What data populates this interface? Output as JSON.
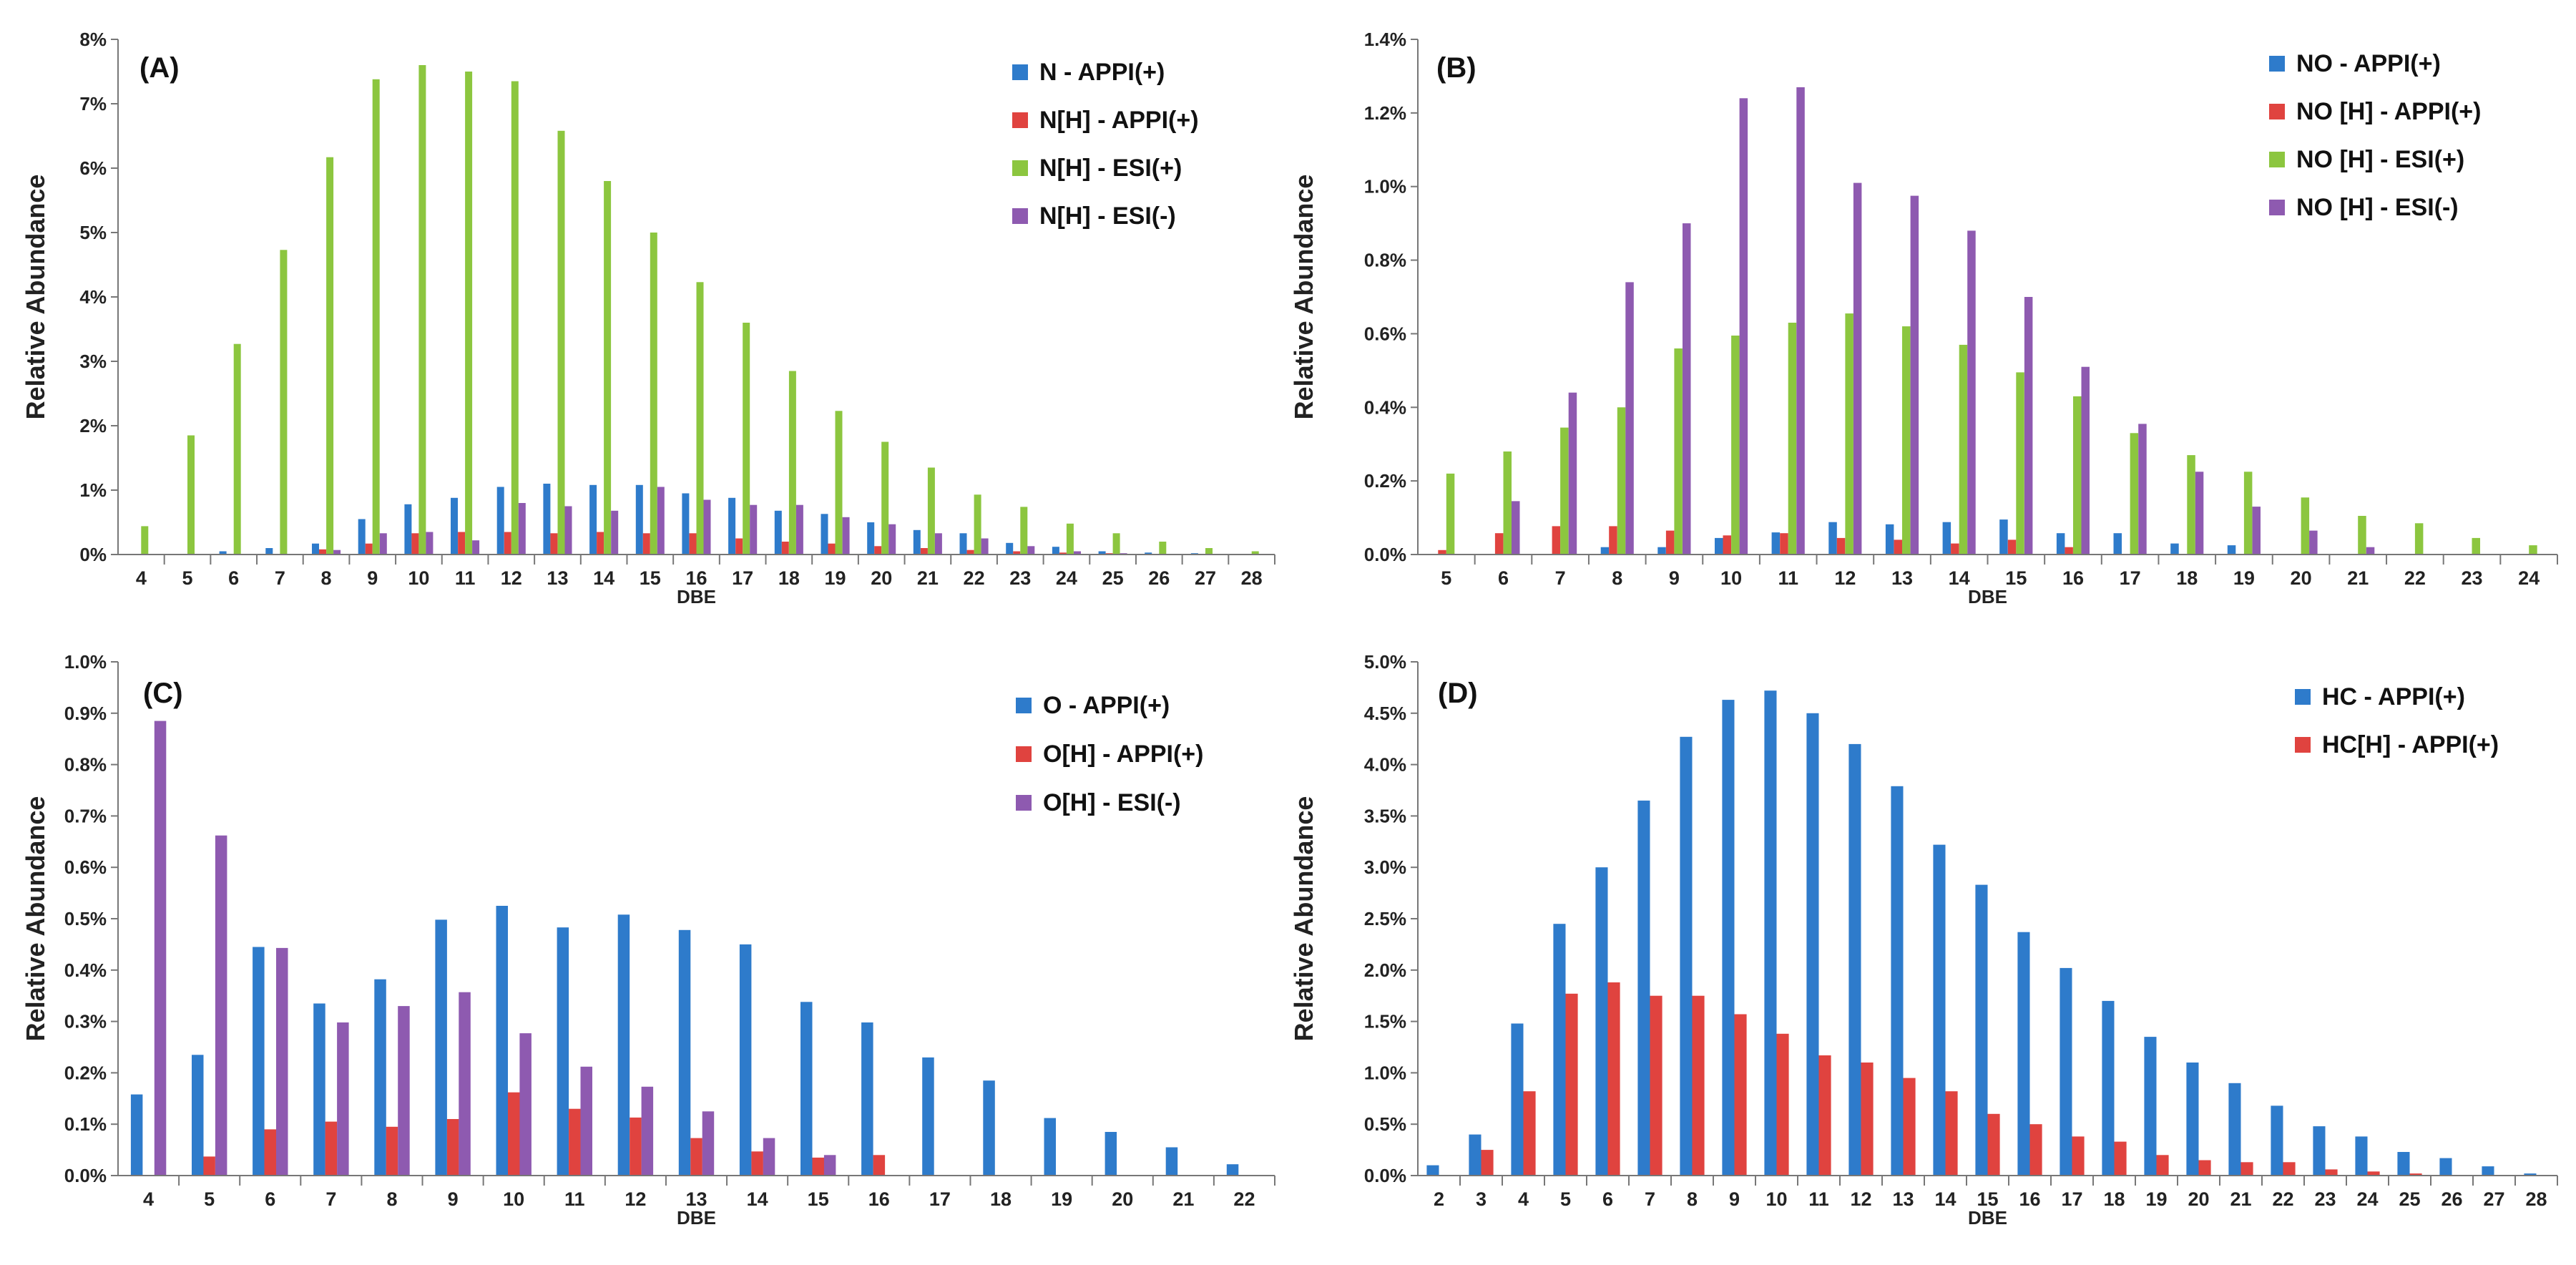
{
  "colors": {
    "blue": "#2E7BCB",
    "red": "#E0433F",
    "green": "#8CC63F",
    "purple": "#8E5AB0"
  },
  "chart_data": [
    {
      "type": "bar",
      "title": "(A)",
      "xlabel": "DBE",
      "ylabel": "Relative Abundance",
      "yticks": [
        "0%",
        "1%",
        "2%",
        "3%",
        "4%",
        "5%",
        "6%",
        "7%",
        "8%"
      ],
      "ylim": [
        0,
        8
      ],
      "categories": [
        "4",
        "5",
        "6",
        "7",
        "8",
        "9",
        "10",
        "11",
        "12",
        "13",
        "14",
        "15",
        "16",
        "17",
        "18",
        "19",
        "20",
        "21",
        "22",
        "23",
        "24",
        "25",
        "26",
        "27",
        "28"
      ],
      "series": [
        {
          "name": "N - APPI(+)",
          "color": "blue",
          "values": [
            0,
            0,
            0.05,
            0.1,
            0.17,
            0.55,
            0.78,
            0.88,
            1.05,
            1.1,
            1.08,
            1.08,
            0.95,
            0.88,
            0.68,
            0.63,
            0.5,
            0.38,
            0.33,
            0.18,
            0.12,
            0.05,
            0.03,
            0.02,
            0.01
          ]
        },
        {
          "name": "N[H] - APPI(+)",
          "color": "red",
          "values": [
            0,
            0,
            0,
            0,
            0.08,
            0.17,
            0.33,
            0.35,
            0.35,
            0.33,
            0.35,
            0.33,
            0.33,
            0.25,
            0.2,
            0.17,
            0.13,
            0.1,
            0.07,
            0.05,
            0.03,
            0.02,
            0.01,
            0,
            0
          ]
        },
        {
          "name": "N[H] - ESI(+)",
          "color": "green",
          "values": [
            0.44,
            1.85,
            3.27,
            4.73,
            6.17,
            7.38,
            7.6,
            7.5,
            7.35,
            6.58,
            5.8,
            5,
            4.23,
            3.6,
            2.85,
            2.23,
            1.75,
            1.35,
            0.93,
            0.74,
            0.48,
            0.33,
            0.2,
            0.1,
            0.05
          ]
        },
        {
          "name": "N[H] - ESI(-)",
          "color": "purple",
          "values": [
            0,
            0,
            0,
            0,
            0.07,
            0.33,
            0.35,
            0.22,
            0.8,
            0.75,
            0.68,
            1.05,
            0.85,
            0.77,
            0.77,
            0.58,
            0.47,
            0.33,
            0.25,
            0.13,
            0.05,
            0.02,
            0,
            0,
            0
          ]
        }
      ]
    },
    {
      "type": "bar",
      "title": "(B)",
      "xlabel": "DBE",
      "ylabel": "Relative Abundance",
      "yticks": [
        "0.0%",
        "0.2%",
        "0.4%",
        "0.6%",
        "0.8%",
        "1.0%",
        "1.2%",
        "1.4%"
      ],
      "ylim": [
        0,
        1.4
      ],
      "categories": [
        "5",
        "6",
        "7",
        "8",
        "9",
        "10",
        "11",
        "12",
        "13",
        "14",
        "15",
        "16",
        "17",
        "18",
        "19",
        "20",
        "21",
        "22",
        "23",
        "24"
      ],
      "series": [
        {
          "name": "NO - APPI(+)",
          "color": "blue",
          "values": [
            0,
            0,
            0,
            0.02,
            0.02,
            0.045,
            0.06,
            0.088,
            0.082,
            0.088,
            0.095,
            0.058,
            0.058,
            0.03,
            0.025,
            0,
            0,
            0,
            0,
            0
          ]
        },
        {
          "name": "NO [H] - APPI(+)",
          "color": "red",
          "values": [
            0.012,
            0.058,
            0.077,
            0.077,
            0.065,
            0.052,
            0.058,
            0.045,
            0.04,
            0.03,
            0.04,
            0.02,
            0,
            0,
            0,
            0,
            0,
            0,
            0,
            0
          ]
        },
        {
          "name": "NO [H] - ESI(+)",
          "color": "green",
          "values": [
            0.22,
            0.28,
            0.345,
            0.4,
            0.56,
            0.595,
            0.63,
            0.655,
            0.62,
            0.57,
            0.495,
            0.43,
            0.33,
            0.27,
            0.225,
            0.155,
            0.105,
            0.085,
            0.045,
            0.025
          ]
        },
        {
          "name": "NO [H] - ESI(-)",
          "color": "purple",
          "values": [
            0,
            0.145,
            0.44,
            0.74,
            0.9,
            1.24,
            1.27,
            1.01,
            0.975,
            0.88,
            0.7,
            0.51,
            0.355,
            0.225,
            0.13,
            0.065,
            0.02,
            0,
            0,
            0
          ]
        }
      ]
    },
    {
      "type": "bar",
      "title": "(C)",
      "xlabel": "DBE",
      "ylabel": "Relative Abundance",
      "yticks": [
        "0.0%",
        "0.1%",
        "0.2%",
        "0.3%",
        "0.4%",
        "0.5%",
        "0.6%",
        "0.7%",
        "0.8%",
        "0.9%",
        "1.0%"
      ],
      "ylim": [
        0,
        1.0
      ],
      "categories": [
        "4",
        "5",
        "6",
        "7",
        "8",
        "9",
        "10",
        "11",
        "12",
        "13",
        "14",
        "15",
        "16",
        "17",
        "18",
        "19",
        "20",
        "21",
        "22"
      ],
      "series": [
        {
          "name": "O - APPI(+)",
          "color": "blue",
          "values": [
            0.158,
            0.235,
            0.445,
            0.335,
            0.382,
            0.498,
            0.525,
            0.483,
            0.508,
            0.478,
            0.45,
            0.338,
            0.298,
            0.23,
            0.185,
            0.112,
            0.085,
            0.055,
            0.022
          ]
        },
        {
          "name": "O[H] - APPI(+)",
          "color": "red",
          "values": [
            0,
            0.037,
            0.09,
            0.105,
            0.095,
            0.11,
            0.162,
            0.13,
            0.113,
            0.073,
            0.047,
            0.035,
            0.04,
            0,
            0,
            0,
            0,
            0,
            0
          ]
        },
        {
          "name": "O[H] - ESI(-)",
          "color": "purple",
          "values": [
            0.885,
            0.662,
            0.443,
            0.298,
            0.33,
            0.357,
            0.277,
            0.212,
            0.173,
            0.125,
            0.073,
            0.04,
            0,
            0,
            0,
            0,
            0,
            0,
            0
          ]
        }
      ]
    },
    {
      "type": "bar",
      "title": "(D)",
      "xlabel": "DBE",
      "ylabel": "Relative Abundance",
      "yticks": [
        "0.0%",
        "0.5%",
        "1.0%",
        "1.5%",
        "2.0%",
        "2.5%",
        "3.0%",
        "3.5%",
        "4.0%",
        "4.5%",
        "5.0%"
      ],
      "ylim": [
        0,
        5.0
      ],
      "categories": [
        "2",
        "3",
        "4",
        "5",
        "6",
        "7",
        "8",
        "9",
        "10",
        "11",
        "12",
        "13",
        "14",
        "15",
        "16",
        "17",
        "18",
        "19",
        "20",
        "21",
        "22",
        "23",
        "24",
        "25",
        "26",
        "27",
        "28"
      ],
      "series": [
        {
          "name": "HC - APPI(+)",
          "color": "blue",
          "values": [
            0.1,
            0.4,
            1.48,
            2.45,
            3.0,
            3.65,
            4.27,
            4.63,
            4.72,
            4.5,
            4.2,
            3.79,
            3.22,
            2.83,
            2.37,
            2.02,
            1.7,
            1.35,
            1.1,
            0.9,
            0.68,
            0.48,
            0.38,
            0.23,
            0.17,
            0.09,
            0.02
          ]
        },
        {
          "name": "HC[H] - APPI(+)",
          "color": "red",
          "values": [
            0,
            0.25,
            0.82,
            1.77,
            1.88,
            1.75,
            1.75,
            1.57,
            1.38,
            1.17,
            1.1,
            0.95,
            0.82,
            0.6,
            0.5,
            0.38,
            0.33,
            0.2,
            0.15,
            0.13,
            0.13,
            0.06,
            0.04,
            0.02,
            0,
            0,
            0
          ]
        }
      ]
    }
  ]
}
